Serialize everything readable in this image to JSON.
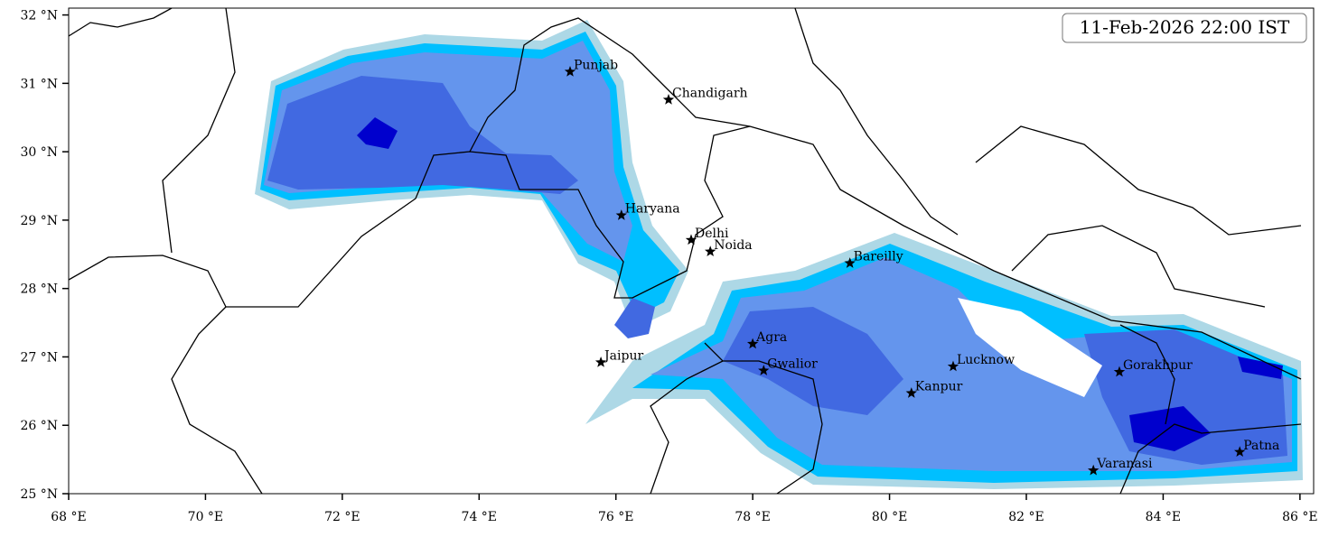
{
  "map": {
    "timestamp": "11-Feb-2026 22:00 IST",
    "xlim": [
      68,
      86.2
    ],
    "ylim": [
      25,
      32.1
    ],
    "xticks": [
      {
        "value": 68,
        "label": "68 °E"
      },
      {
        "value": 70,
        "label": "70 °E"
      },
      {
        "value": 72,
        "label": "72 °E"
      },
      {
        "value": 74,
        "label": "74 °E"
      },
      {
        "value": 76,
        "label": "76 °E"
      },
      {
        "value": 78,
        "label": "78 °E"
      },
      {
        "value": 80,
        "label": "80 °E"
      },
      {
        "value": 82,
        "label": "82 °E"
      },
      {
        "value": 84,
        "label": "84 °E"
      },
      {
        "value": 86,
        "label": "86 °E"
      }
    ],
    "yticks": [
      {
        "value": 25,
        "label": "25 °N"
      },
      {
        "value": 26,
        "label": "26 °N"
      },
      {
        "value": 27,
        "label": "27 °N"
      },
      {
        "value": 28,
        "label": "28 °N"
      },
      {
        "value": 29,
        "label": "29 °N"
      },
      {
        "value": 30,
        "label": "30 °N"
      },
      {
        "value": 31,
        "label": "31 °N"
      },
      {
        "value": 32,
        "label": "32 °N"
      }
    ],
    "cities": [
      {
        "name": "Punjab",
        "lon": 75.33,
        "lat": 31.17
      },
      {
        "name": "Chandigarh",
        "lon": 76.77,
        "lat": 30.76
      },
      {
        "name": "Haryana",
        "lon": 76.08,
        "lat": 29.07
      },
      {
        "name": "Delhi",
        "lon": 77.1,
        "lat": 28.71
      },
      {
        "name": "Noida",
        "lon": 77.38,
        "lat": 28.54
      },
      {
        "name": "Bareilly",
        "lon": 79.42,
        "lat": 28.37
      },
      {
        "name": "Agra",
        "lon": 78.0,
        "lat": 27.19
      },
      {
        "name": "Jaipur",
        "lon": 75.78,
        "lat": 26.92
      },
      {
        "name": "Gwalior",
        "lon": 78.16,
        "lat": 26.8
      },
      {
        "name": "Lucknow",
        "lon": 80.93,
        "lat": 26.86
      },
      {
        "name": "Kanpur",
        "lon": 80.32,
        "lat": 26.47
      },
      {
        "name": "Gorakhpur",
        "lon": 83.36,
        "lat": 26.78
      },
      {
        "name": "Patna",
        "lon": 85.12,
        "lat": 25.61
      },
      {
        "name": "Varanasi",
        "lon": 82.98,
        "lat": 25.34
      }
    ]
  }
}
